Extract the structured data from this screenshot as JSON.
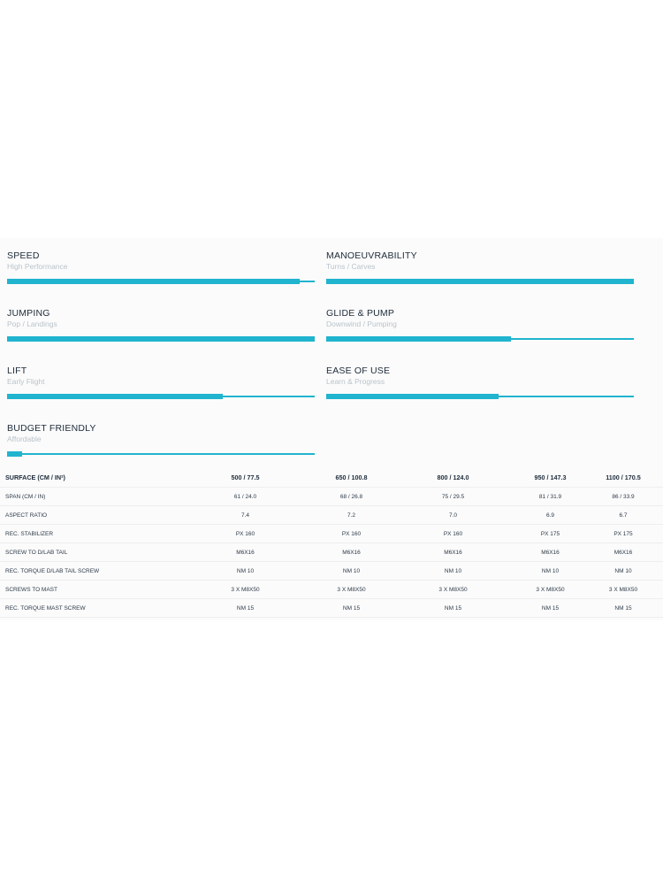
{
  "ratings": [
    {
      "title": "SPEED",
      "subtitle": "High Performance",
      "level": 0.95
    },
    {
      "title": "MANOEUVRABILITY",
      "subtitle": "Turns / Carves",
      "level": 1.0
    },
    {
      "title": "JUMPING",
      "subtitle": "Pop / Landings",
      "level": 1.0
    },
    {
      "title": "GLIDE & PUMP",
      "subtitle": "Downwind / Pumping",
      "level": 0.6
    },
    {
      "title": "LIFT",
      "subtitle": "Early Flight",
      "level": 0.7
    },
    {
      "title": "EASE OF USE",
      "subtitle": "Learn & Progress",
      "level": 0.56
    },
    {
      "title": "BUDGET FRIENDLY",
      "subtitle": "Affordable",
      "level": 0.05
    }
  ],
  "table": {
    "header": [
      "SURFACE (CM / IN²)",
      "500 / 77.5",
      "650 / 100.8",
      "800 / 124.0",
      "950 / 147.3",
      "1100 / 170.5"
    ],
    "rows": [
      [
        "SPAN (CM / IN)",
        "61 / 24.0",
        "68 / 26.8",
        "75 / 29.5",
        "81 / 31.9",
        "86 / 33.9"
      ],
      [
        "ASPECT RATIO",
        "7.4",
        "7.2",
        "7.0",
        "6.9",
        "6.7"
      ],
      [
        "REC. STABILIZER",
        "PX 160",
        "PX 160",
        "PX 160",
        "PX 175",
        "PX 175"
      ],
      [
        "SCREW TO D/LAB TAIL",
        "M6X16",
        "M6X16",
        "M6X16",
        "M6X16",
        "M6X16"
      ],
      [
        "REC. TORQUE D/LAB TAIL SCREW",
        "NM 10",
        "NM 10",
        "NM 10",
        "NM 10",
        "NM 10"
      ],
      [
        "SCREWS TO MAST",
        "3 X M8X50",
        "3 X M8X50",
        "3 X M8X50",
        "3 X M8X50",
        "3 X M8X50"
      ],
      [
        "REC. TORQUE MAST SCREW",
        "NM 15",
        "NM 15",
        "NM 15",
        "NM 15",
        "NM 15"
      ]
    ]
  },
  "colors": {
    "accent": "#20b4cf",
    "title_text": "#1d2b3a",
    "subtitle_text": "#b9c3cb"
  }
}
